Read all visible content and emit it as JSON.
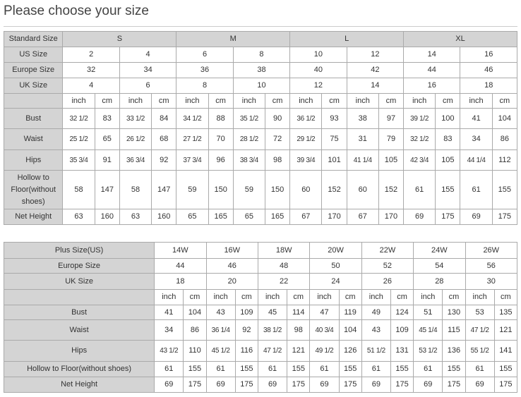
{
  "title": "Please choose your size",
  "standard_table": {
    "header_label": "Standard Size",
    "groups": [
      "S",
      "M",
      "L",
      "XL"
    ],
    "size_rows": [
      {
        "label": "US Size",
        "values": [
          "2",
          "4",
          "6",
          "8",
          "10",
          "12",
          "14",
          "16"
        ]
      },
      {
        "label": "Europe Size",
        "values": [
          "32",
          "34",
          "36",
          "38",
          "40",
          "42",
          "44",
          "46"
        ]
      },
      {
        "label": "UK Size",
        "values": [
          "4",
          "6",
          "8",
          "10",
          "12",
          "14",
          "16",
          "18"
        ]
      }
    ],
    "unit_labels": [
      "inch",
      "cm"
    ],
    "measure_rows": [
      {
        "label": "Bust",
        "values": [
          "32 1/2",
          "83",
          "33 1/2",
          "84",
          "34 1/2",
          "88",
          "35 1/2",
          "90",
          "36 1/2",
          "93",
          "38",
          "97",
          "39 1/2",
          "100",
          "41",
          "104"
        ]
      },
      {
        "label": "Waist",
        "values": [
          "25 1/2",
          "65",
          "26 1/2",
          "68",
          "27 1/2",
          "70",
          "28 1/2",
          "72",
          "29 1/2",
          "75",
          "31",
          "79",
          "32 1/2",
          "83",
          "34",
          "86"
        ]
      },
      {
        "label": "Hips",
        "values": [
          "35 3/4",
          "91",
          "36 3/4",
          "92",
          "37 3/4",
          "96",
          "38 3/4",
          "98",
          "39 3/4",
          "101",
          "41 1/4",
          "105",
          "42 3/4",
          "105",
          "44 1/4",
          "112"
        ]
      },
      {
        "label": "Hollow to Floor(without shoes)",
        "values": [
          "58",
          "147",
          "58",
          "147",
          "59",
          "150",
          "59",
          "150",
          "60",
          "152",
          "60",
          "152",
          "61",
          "155",
          "61",
          "155"
        ]
      },
      {
        "label": "Net Height",
        "values": [
          "63",
          "160",
          "63",
          "160",
          "65",
          "165",
          "65",
          "165",
          "67",
          "170",
          "67",
          "170",
          "69",
          "175",
          "69",
          "175"
        ]
      }
    ]
  },
  "plus_table": {
    "size_rows": [
      {
        "label": "Plus Size(US)",
        "values": [
          "14W",
          "16W",
          "18W",
          "20W",
          "22W",
          "24W",
          "26W"
        ]
      },
      {
        "label": "Europe Size",
        "values": [
          "44",
          "46",
          "48",
          "50",
          "52",
          "54",
          "56"
        ]
      },
      {
        "label": "UK Size",
        "values": [
          "18",
          "20",
          "22",
          "24",
          "26",
          "28",
          "30"
        ]
      }
    ],
    "unit_labels": [
      "inch",
      "cm"
    ],
    "measure_rows": [
      {
        "label": "Bust",
        "values": [
          "41",
          "104",
          "43",
          "109",
          "45",
          "114",
          "47",
          "119",
          "49",
          "124",
          "51",
          "130",
          "53",
          "135"
        ]
      },
      {
        "label": "Waist",
        "values": [
          "34",
          "86",
          "36 1/4",
          "92",
          "38 1/2",
          "98",
          "40 3/4",
          "104",
          "43",
          "109",
          "45 1/4",
          "115",
          "47 1/2",
          "121"
        ]
      },
      {
        "label": "Hips",
        "values": [
          "43 1/2",
          "110",
          "45 1/2",
          "116",
          "47 1/2",
          "121",
          "49 1/2",
          "126",
          "51 1/2",
          "131",
          "53 1/2",
          "136",
          "55 1/2",
          "141"
        ]
      },
      {
        "label": "Hollow to Floor(without shoes)",
        "values": [
          "61",
          "155",
          "61",
          "155",
          "61",
          "155",
          "61",
          "155",
          "61",
          "155",
          "61",
          "155",
          "61",
          "155"
        ]
      },
      {
        "label": "Net Height",
        "values": [
          "69",
          "175",
          "69",
          "175",
          "69",
          "175",
          "69",
          "175",
          "69",
          "175",
          "69",
          "175",
          "69",
          "175"
        ]
      }
    ]
  },
  "colors": {
    "header_bg": "#d4d4d4",
    "border": "#aaaaaa"
  }
}
